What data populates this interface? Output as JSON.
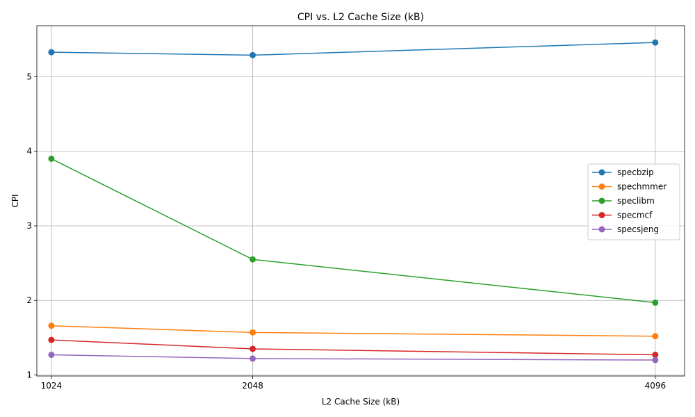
{
  "chart_data": {
    "type": "line",
    "title": "CPI vs. L2 Cache Size (kB)",
    "xlabel": "L2 Cache Size (kB)",
    "ylabel": "CPI",
    "x": [
      1024,
      2048,
      4096
    ],
    "xticks": [
      "1024",
      "2048",
      "4096"
    ],
    "yticks": [
      "1",
      "2",
      "3",
      "4",
      "5"
    ],
    "xlim": [
      950,
      4245
    ],
    "ylim": [
      0.986,
      5.685
    ],
    "grid": true,
    "legend_position": "center-right",
    "series": [
      {
        "name": "specbzip",
        "color": "#1f77b4",
        "values": [
          5.33,
          5.29,
          5.46
        ]
      },
      {
        "name": "spechmmer",
        "color": "#ff7f0e",
        "values": [
          1.66,
          1.57,
          1.52
        ]
      },
      {
        "name": "speclibm",
        "color": "#2ca02c",
        "values": [
          3.9,
          2.55,
          1.97
        ]
      },
      {
        "name": "specmcf",
        "color": "#d62728",
        "values": [
          1.47,
          1.35,
          1.27
        ]
      },
      {
        "name": "specsjeng",
        "color": "#9467bd",
        "values": [
          1.27,
          1.22,
          1.2
        ]
      }
    ]
  }
}
